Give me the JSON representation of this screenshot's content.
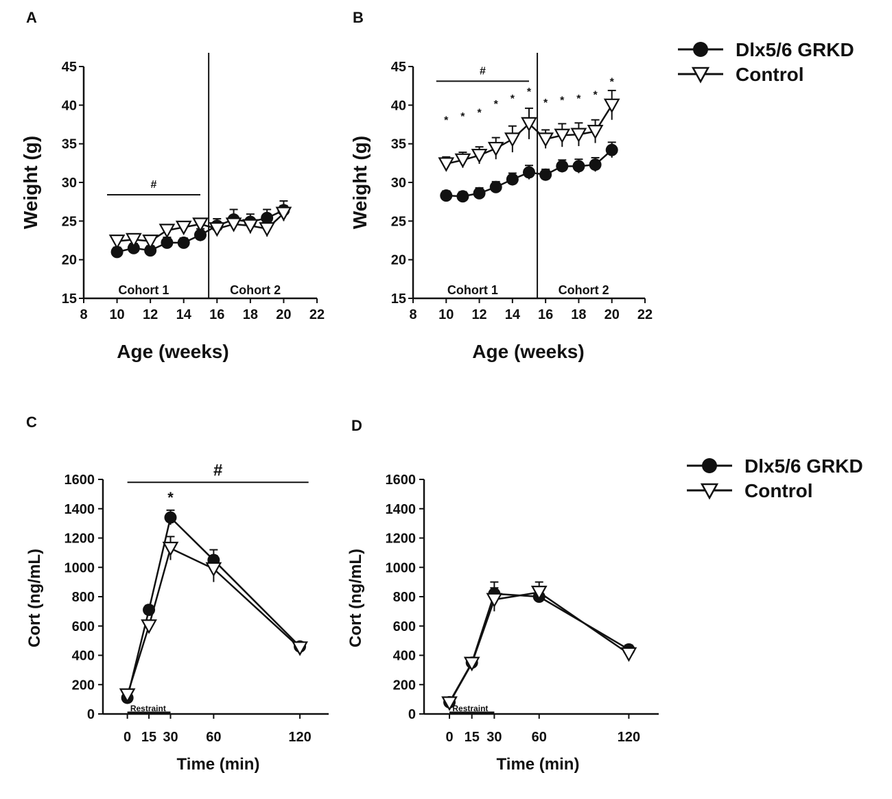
{
  "legend": {
    "series": [
      "Dlx5/6 GRKD",
      "Control"
    ],
    "filled_color": "#111111",
    "open_color": "#ffffff"
  },
  "significance_symbols": {
    "hash": "#",
    "star": "*"
  },
  "chart_data": [
    {
      "id": "A",
      "panel_label": "A",
      "type": "line",
      "xlabel": "Age (weeks)",
      "ylabel": "Weight (g)",
      "xlim": [
        8,
        22
      ],
      "ylim": [
        15,
        45
      ],
      "xticks": [
        8,
        10,
        12,
        14,
        16,
        18,
        20,
        22
      ],
      "yticks": [
        15,
        20,
        25,
        30,
        35,
        40,
        45
      ],
      "divider_x": 15.5,
      "regions": [
        {
          "label": "Cohort 1",
          "x": 11.6
        },
        {
          "label": "Cohort 2",
          "x": 18.3
        }
      ],
      "significance_bars": [
        {
          "symbol": "#",
          "x_start": 9.4,
          "x_end": 15.0,
          "y": 28.4
        }
      ],
      "stars": [],
      "series": [
        {
          "name": "Dlx5/6 GRKD",
          "marker": "circle",
          "x": [
            10,
            11,
            12,
            13,
            14,
            15,
            16,
            17,
            18,
            19,
            20
          ],
          "y": [
            21.0,
            21.5,
            21.2,
            22.2,
            22.2,
            23.2,
            24.4,
            25.2,
            24.9,
            25.4,
            26.4
          ],
          "err": [
            0.6,
            0.6,
            0.6,
            0.7,
            0.6,
            0.8,
            0.9,
            1.3,
            1.0,
            1.1,
            1.2
          ]
        },
        {
          "name": "Control",
          "marker": "triangle-down",
          "x": [
            10,
            11,
            12,
            13,
            14,
            15,
            16,
            17,
            18,
            19,
            20
          ],
          "y": [
            22.4,
            22.6,
            22.4,
            23.8,
            24.2,
            24.6,
            24.0,
            24.6,
            24.4,
            24.0,
            26.0
          ],
          "err": [
            0.5,
            0.5,
            0.5,
            0.6,
            0.6,
            0.6,
            0.8,
            0.9,
            1.0,
            1.0,
            1.0
          ]
        }
      ]
    },
    {
      "id": "B",
      "panel_label": "B",
      "type": "line",
      "xlabel": "Age (weeks)",
      "ylabel": "Weight (g)",
      "xlim": [
        8,
        22
      ],
      "ylim": [
        15,
        45
      ],
      "xticks": [
        8,
        10,
        12,
        14,
        16,
        18,
        20,
        22
      ],
      "yticks": [
        15,
        20,
        25,
        30,
        35,
        40,
        45
      ],
      "divider_x": 15.5,
      "regions": [
        {
          "label": "Cohort 1",
          "x": 11.6
        },
        {
          "label": "Cohort 2",
          "x": 18.3
        }
      ],
      "significance_bars": [
        {
          "symbol": "#",
          "x_start": 9.4,
          "x_end": 15.0,
          "y": 43.1
        }
      ],
      "stars": [
        {
          "x": 10,
          "y": 38.1
        },
        {
          "x": 11,
          "y": 38.6
        },
        {
          "x": 12,
          "y": 39.1
        },
        {
          "x": 13,
          "y": 40.2
        },
        {
          "x": 14,
          "y": 40.9
        },
        {
          "x": 15,
          "y": 41.8
        },
        {
          "x": 16,
          "y": 40.4
        },
        {
          "x": 17,
          "y": 40.7
        },
        {
          "x": 18,
          "y": 40.9
        },
        {
          "x": 19,
          "y": 41.4
        },
        {
          "x": 20,
          "y": 43.1
        }
      ],
      "series": [
        {
          "name": "Dlx5/6 GRKD",
          "marker": "circle",
          "x": [
            10,
            11,
            12,
            13,
            14,
            15,
            16,
            17,
            18,
            19,
            20
          ],
          "y": [
            28.3,
            28.2,
            28.6,
            29.4,
            30.4,
            31.3,
            31.0,
            32.1,
            32.1,
            32.3,
            34.2
          ],
          "err": [
            0.6,
            0.6,
            0.7,
            0.7,
            0.8,
            0.9,
            0.7,
            0.8,
            0.9,
            0.9,
            1.0
          ]
        },
        {
          "name": "Control",
          "marker": "triangle-down",
          "x": [
            10,
            11,
            12,
            13,
            14,
            15,
            16,
            17,
            18,
            19,
            20
          ],
          "y": [
            32.4,
            32.9,
            33.5,
            34.4,
            35.6,
            37.6,
            35.6,
            36.1,
            36.2,
            36.6,
            40.0
          ],
          "err": [
            0.9,
            1.0,
            1.1,
            1.4,
            1.7,
            2.0,
            1.2,
            1.5,
            1.5,
            1.5,
            1.9
          ]
        }
      ]
    },
    {
      "id": "C",
      "panel_label": "C",
      "type": "line",
      "xlabel": "Time (min)",
      "ylabel": "Cort (ng/mL)",
      "xlim": [
        -17,
        140
      ],
      "ylim": [
        0,
        1600
      ],
      "xticks": [
        0,
        15,
        30,
        60,
        120
      ],
      "yticks": [
        0,
        200,
        400,
        600,
        800,
        1000,
        1200,
        1400,
        1600
      ],
      "restraint_label": "Restraint",
      "significance_bars": [
        {
          "symbol": "#",
          "x_start": 0,
          "x_end": 126,
          "y": 1580
        }
      ],
      "stars": [
        {
          "x": 30,
          "y": 1470
        }
      ],
      "series": [
        {
          "name": "Dlx5/6 GRKD",
          "marker": "circle",
          "x": [
            0,
            15,
            30,
            60,
            120
          ],
          "y": [
            110,
            710,
            1340,
            1050,
            460
          ],
          "err": [
            20,
            30,
            50,
            70,
            30
          ]
        },
        {
          "name": "Control",
          "marker": "triangle-down",
          "x": [
            0,
            15,
            30,
            60,
            120
          ],
          "y": [
            130,
            600,
            1130,
            990,
            450
          ],
          "err": [
            30,
            30,
            80,
            90,
            30
          ]
        }
      ]
    },
    {
      "id": "D",
      "panel_label": "D",
      "type": "line",
      "xlabel": "Time (min)",
      "ylabel": "Cort (ng/mL)",
      "xlim": [
        -17,
        140
      ],
      "ylim": [
        0,
        1600
      ],
      "xticks": [
        0,
        15,
        30,
        60,
        120
      ],
      "yticks": [
        0,
        200,
        400,
        600,
        800,
        1000,
        1200,
        1400,
        1600
      ],
      "restraint_label": "Restraint",
      "significance_bars": [],
      "stars": [],
      "series": [
        {
          "name": "Dlx5/6 GRKD",
          "marker": "circle",
          "x": [
            0,
            15,
            30,
            60,
            120
          ],
          "y": [
            80,
            350,
            820,
            800,
            440
          ],
          "err": [
            20,
            25,
            80,
            40,
            30
          ]
        },
        {
          "name": "Control",
          "marker": "triangle-down",
          "x": [
            0,
            15,
            30,
            60,
            120
          ],
          "y": [
            75,
            345,
            780,
            830,
            410
          ],
          "err": [
            20,
            25,
            80,
            70,
            30
          ]
        }
      ]
    }
  ]
}
